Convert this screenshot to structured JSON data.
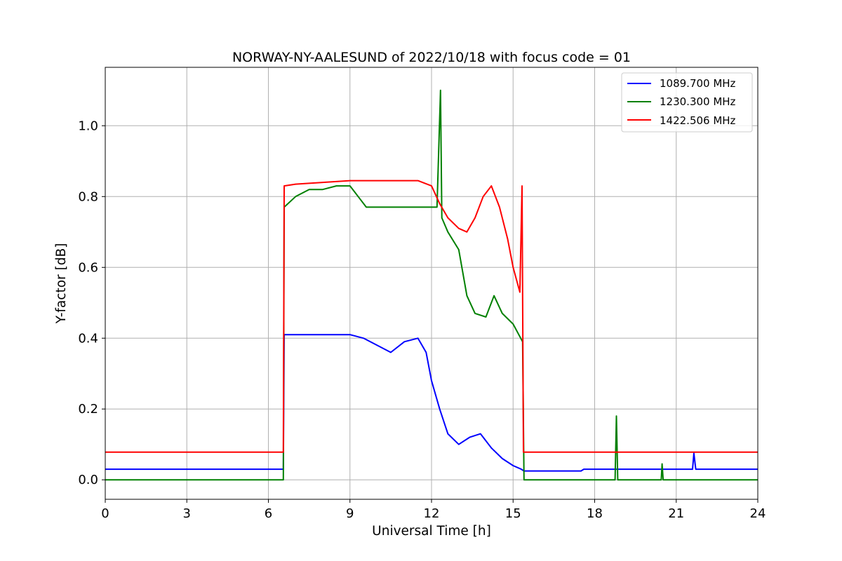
{
  "chart_data": {
    "type": "line",
    "title": "NORWAY-NY-AALESUND of 2022/10/18 with focus code = 01",
    "xlabel": "Universal Time [h]",
    "ylabel": "Y-factor [dB]",
    "xlim": [
      0,
      24
    ],
    "ylim": [
      -0.055,
      1.165
    ],
    "xticks": [
      0,
      3,
      6,
      9,
      12,
      15,
      18,
      21,
      24
    ],
    "xtick_labels": [
      "0",
      "3",
      "6",
      "9",
      "12",
      "15",
      "18",
      "21",
      "24"
    ],
    "yticks": [
      0.0,
      0.2,
      0.4,
      0.6,
      0.8,
      1.0
    ],
    "ytick_labels": [
      "0.0",
      "0.2",
      "0.4",
      "0.6",
      "0.8",
      "1.0"
    ],
    "grid": true,
    "legend_position": "top-right",
    "series": [
      {
        "name": "1089.700 MHz",
        "color": "#0000ff",
        "points": [
          [
            0.0,
            0.03
          ],
          [
            6.55,
            0.03
          ],
          [
            6.58,
            0.41
          ],
          [
            7.0,
            0.41
          ],
          [
            8.0,
            0.41
          ],
          [
            9.0,
            0.41
          ],
          [
            9.5,
            0.4
          ],
          [
            10.0,
            0.38
          ],
          [
            10.5,
            0.36
          ],
          [
            11.0,
            0.39
          ],
          [
            11.5,
            0.4
          ],
          [
            11.8,
            0.36
          ],
          [
            12.0,
            0.28
          ],
          [
            12.3,
            0.2
          ],
          [
            12.6,
            0.13
          ],
          [
            13.0,
            0.1
          ],
          [
            13.4,
            0.12
          ],
          [
            13.8,
            0.13
          ],
          [
            14.2,
            0.09
          ],
          [
            14.6,
            0.06
          ],
          [
            15.0,
            0.04
          ],
          [
            15.3,
            0.03
          ],
          [
            15.4,
            0.025
          ],
          [
            16.0,
            0.025
          ],
          [
            17.0,
            0.025
          ],
          [
            17.5,
            0.025
          ],
          [
            17.6,
            0.03
          ],
          [
            21.6,
            0.03
          ],
          [
            21.65,
            0.075
          ],
          [
            21.72,
            0.03
          ],
          [
            24.0,
            0.03
          ]
        ]
      },
      {
        "name": "1230.300 MHz",
        "color": "#008000",
        "points": [
          [
            0.0,
            0.0
          ],
          [
            6.55,
            0.0
          ],
          [
            6.58,
            0.77
          ],
          [
            7.0,
            0.8
          ],
          [
            7.5,
            0.82
          ],
          [
            8.0,
            0.82
          ],
          [
            8.5,
            0.83
          ],
          [
            9.0,
            0.83
          ],
          [
            9.4,
            0.79
          ],
          [
            9.6,
            0.77
          ],
          [
            10.5,
            0.77
          ],
          [
            11.0,
            0.77
          ],
          [
            11.5,
            0.77
          ],
          [
            11.9,
            0.77
          ],
          [
            12.2,
            0.77
          ],
          [
            12.33,
            1.1
          ],
          [
            12.38,
            0.74
          ],
          [
            12.6,
            0.7
          ],
          [
            13.0,
            0.65
          ],
          [
            13.3,
            0.52
          ],
          [
            13.6,
            0.47
          ],
          [
            14.0,
            0.46
          ],
          [
            14.3,
            0.52
          ],
          [
            14.6,
            0.47
          ],
          [
            15.0,
            0.44
          ],
          [
            15.35,
            0.39
          ],
          [
            15.4,
            0.0
          ],
          [
            18.75,
            0.0
          ],
          [
            18.8,
            0.18
          ],
          [
            18.85,
            0.0
          ],
          [
            20.45,
            0.0
          ],
          [
            20.48,
            0.045
          ],
          [
            20.52,
            0.0
          ],
          [
            24.0,
            0.0
          ]
        ]
      },
      {
        "name": "1422.506 MHz",
        "color": "#ff0000",
        "points": [
          [
            0.0,
            0.078
          ],
          [
            6.55,
            0.078
          ],
          [
            6.58,
            0.83
          ],
          [
            7.0,
            0.835
          ],
          [
            8.0,
            0.84
          ],
          [
            9.0,
            0.845
          ],
          [
            10.0,
            0.845
          ],
          [
            11.0,
            0.845
          ],
          [
            11.5,
            0.845
          ],
          [
            12.0,
            0.83
          ],
          [
            12.3,
            0.78
          ],
          [
            12.6,
            0.74
          ],
          [
            13.0,
            0.71
          ],
          [
            13.3,
            0.7
          ],
          [
            13.6,
            0.74
          ],
          [
            13.9,
            0.8
          ],
          [
            14.2,
            0.83
          ],
          [
            14.5,
            0.77
          ],
          [
            14.8,
            0.68
          ],
          [
            15.0,
            0.6
          ],
          [
            15.25,
            0.53
          ],
          [
            15.33,
            0.83
          ],
          [
            15.38,
            0.078
          ],
          [
            24.0,
            0.078
          ]
        ]
      }
    ]
  }
}
